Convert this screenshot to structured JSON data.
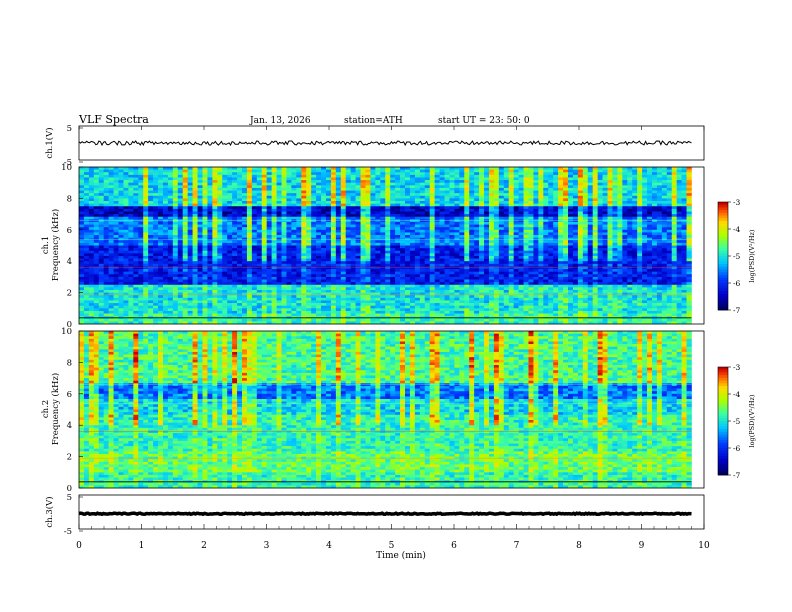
{
  "header": {
    "title": "VLF  Spectra",
    "date": "Jan. 13, 2026",
    "station": "station=ATH",
    "start": "start  UT  =   23: 50: 0"
  },
  "chart_data": [
    {
      "type": "line",
      "name": "ch1-waveform",
      "ylabel": "ch.1(V)",
      "ylim": [
        -5,
        5
      ],
      "yticks": [
        "5",
        "-5"
      ],
      "xlim": [
        0,
        10
      ],
      "baseline": 0,
      "noise_amplitude": 0.6
    },
    {
      "type": "heatmap",
      "name": "ch1-spectrogram",
      "ylabel": "ch.1\nFrequency (kHz)",
      "ylim": [
        0,
        10
      ],
      "yticks": [
        "0",
        "2",
        "4",
        "6",
        "8",
        "10"
      ],
      "xlim": [
        0,
        9.8
      ],
      "colorbar": {
        "label": "log(PSD)(V²/Hz)",
        "range": [
          -7,
          -3
        ],
        "ticks": [
          "-3",
          "-4",
          "-5",
          "-6",
          "-7"
        ]
      }
    },
    {
      "type": "heatmap",
      "name": "ch2-spectrogram",
      "ylabel": "ch.2\nFrequency (kHz)",
      "ylim": [
        0,
        10
      ],
      "yticks": [
        "0",
        "2",
        "4",
        "6",
        "8",
        "10"
      ],
      "xlim": [
        0,
        9.8
      ],
      "colorbar": {
        "label": "log(PSD)(V²/Hz)",
        "range": [
          -7,
          -3
        ],
        "ticks": [
          "-3",
          "-4",
          "-5",
          "-6",
          "-7"
        ]
      }
    },
    {
      "type": "line",
      "name": "ch3-waveform",
      "ylabel": "ch.3(V)",
      "ylim": [
        -5,
        5
      ],
      "yticks": [
        "5",
        "-5"
      ],
      "xlim": [
        0,
        10
      ],
      "baseline": -0.5,
      "noise_amplitude": 0.15
    }
  ],
  "xaxis": {
    "label": "Time  (min)",
    "ticks": [
      "0",
      "1",
      "2",
      "3",
      "4",
      "5",
      "6",
      "7",
      "8",
      "9",
      "10"
    ]
  }
}
